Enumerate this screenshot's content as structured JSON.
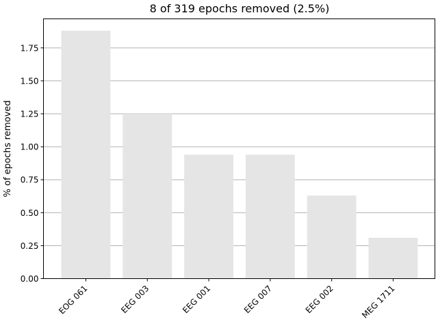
{
  "chart_data": {
    "type": "bar",
    "title": "8 of 319 epochs removed (2.5%)",
    "xlabel": "",
    "ylabel": "% of epochs removed",
    "categories": [
      "EOG 061",
      "EEG 003",
      "EEG 001",
      "EEG 007",
      "EEG 002",
      "MEG 1711"
    ],
    "values": [
      1.88,
      1.25,
      0.94,
      0.94,
      0.63,
      0.31
    ],
    "yticks": [
      "0.00",
      "0.25",
      "0.50",
      "0.75",
      "1.00",
      "1.25",
      "1.50",
      "1.75"
    ],
    "ylim": [
      0,
      1.97
    ],
    "grid": "horizontal",
    "bar_color": "#e5e5e5",
    "grid_color": "#b0b0b0"
  }
}
